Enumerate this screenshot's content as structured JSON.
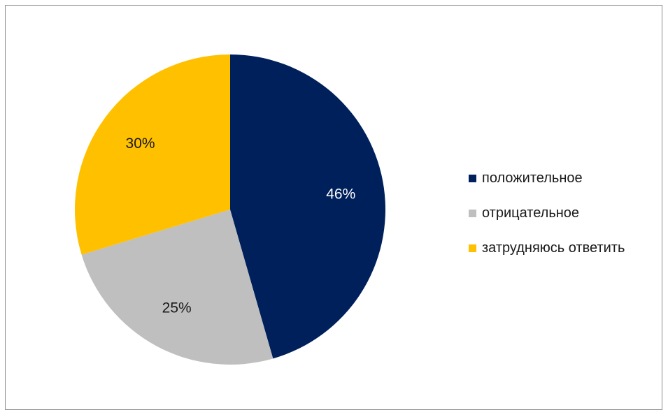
{
  "chart_data": {
    "type": "pie",
    "categories": [
      "положительное",
      "отрицательное",
      "затрудняюсь ответить"
    ],
    "values": [
      46,
      25,
      30
    ],
    "data_labels": [
      "46%",
      "25%",
      "30%"
    ],
    "colors": [
      "#00205b",
      "#bfbfbf",
      "#ffc000"
    ],
    "label_colors": [
      "#ffffff",
      "#1a1a1a",
      "#1a1a1a"
    ],
    "legend_position": "right",
    "border_color": "#8c8c8c"
  }
}
